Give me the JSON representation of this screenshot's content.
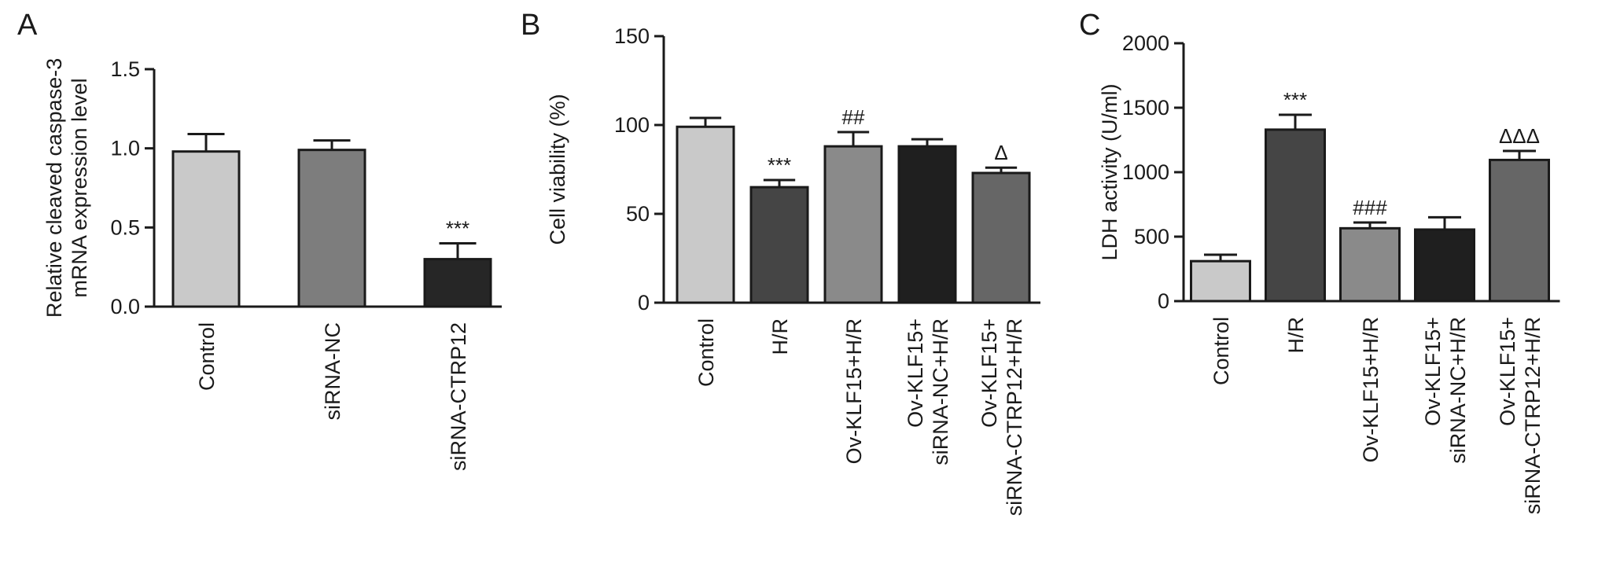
{
  "chart_data": [
    {
      "panel_label": "A",
      "type": "bar",
      "ylabel_lines": [
        "Relative cleaved caspase-3",
        "mRNA expression level"
      ],
      "categories": [
        [
          "Control"
        ],
        [
          "siRNA-NC"
        ],
        [
          "siRNA-CTRP12"
        ]
      ],
      "values": [
        0.98,
        0.99,
        0.3
      ],
      "errors": [
        0.11,
        0.06,
        0.1
      ],
      "annotations": [
        "",
        "",
        "***"
      ],
      "ylim": [
        0,
        1.5
      ],
      "yticks": [
        0,
        0.5,
        1.0,
        1.5
      ],
      "ytick_labels": [
        "0.0",
        "0.5",
        "1.0",
        "1.5"
      ],
      "bar_colors": [
        "#c9c9c9",
        "#7d7d7d",
        "#262626"
      ]
    },
    {
      "panel_label": "B",
      "type": "bar",
      "ylabel_lines": [
        "Cell viability (%)"
      ],
      "categories": [
        [
          "Control"
        ],
        [
          "H/R"
        ],
        [
          "Ov-KLF15+H/R"
        ],
        [
          "Ov-KLF15+",
          "siRNA-NC+H/R"
        ],
        [
          "Ov-KLF15+",
          "siRNA-CTRP12+H/R"
        ]
      ],
      "values": [
        99,
        65,
        88,
        88,
        73
      ],
      "errors": [
        5,
        4,
        8,
        4,
        3
      ],
      "annotations": [
        "",
        "***",
        "##",
        "",
        "Δ"
      ],
      "ylim": [
        0,
        150
      ],
      "yticks": [
        0,
        50,
        100,
        150
      ],
      "ytick_labels": [
        "0",
        "50",
        "100",
        "150"
      ],
      "bar_colors": [
        "#c9c9c9",
        "#454545",
        "#8a8a8a",
        "#1f1f1f",
        "#666666"
      ]
    },
    {
      "panel_label": "C",
      "type": "bar",
      "ylabel_lines": [
        "LDH activity (U/ml)"
      ],
      "categories": [
        [
          "Control"
        ],
        [
          "H/R"
        ],
        [
          "Ov-KLF15+H/R"
        ],
        [
          "Ov-KLF15+",
          "siRNA-NC+H/R"
        ],
        [
          "Ov-KLF15+",
          "siRNA-CTRP12+H/R"
        ]
      ],
      "values": [
        310,
        1330,
        565,
        555,
        1095
      ],
      "errors": [
        50,
        115,
        45,
        95,
        70
      ],
      "annotations": [
        "",
        "***",
        "###",
        "",
        "ΔΔΔ"
      ],
      "ylim": [
        0,
        2000
      ],
      "yticks": [
        0,
        500,
        1000,
        1500,
        2000
      ],
      "ytick_labels": [
        "0",
        "500",
        "1000",
        "1500",
        "2000"
      ],
      "bar_colors": [
        "#c9c9c9",
        "#454545",
        "#8a8a8a",
        "#1f1f1f",
        "#666666"
      ]
    }
  ]
}
